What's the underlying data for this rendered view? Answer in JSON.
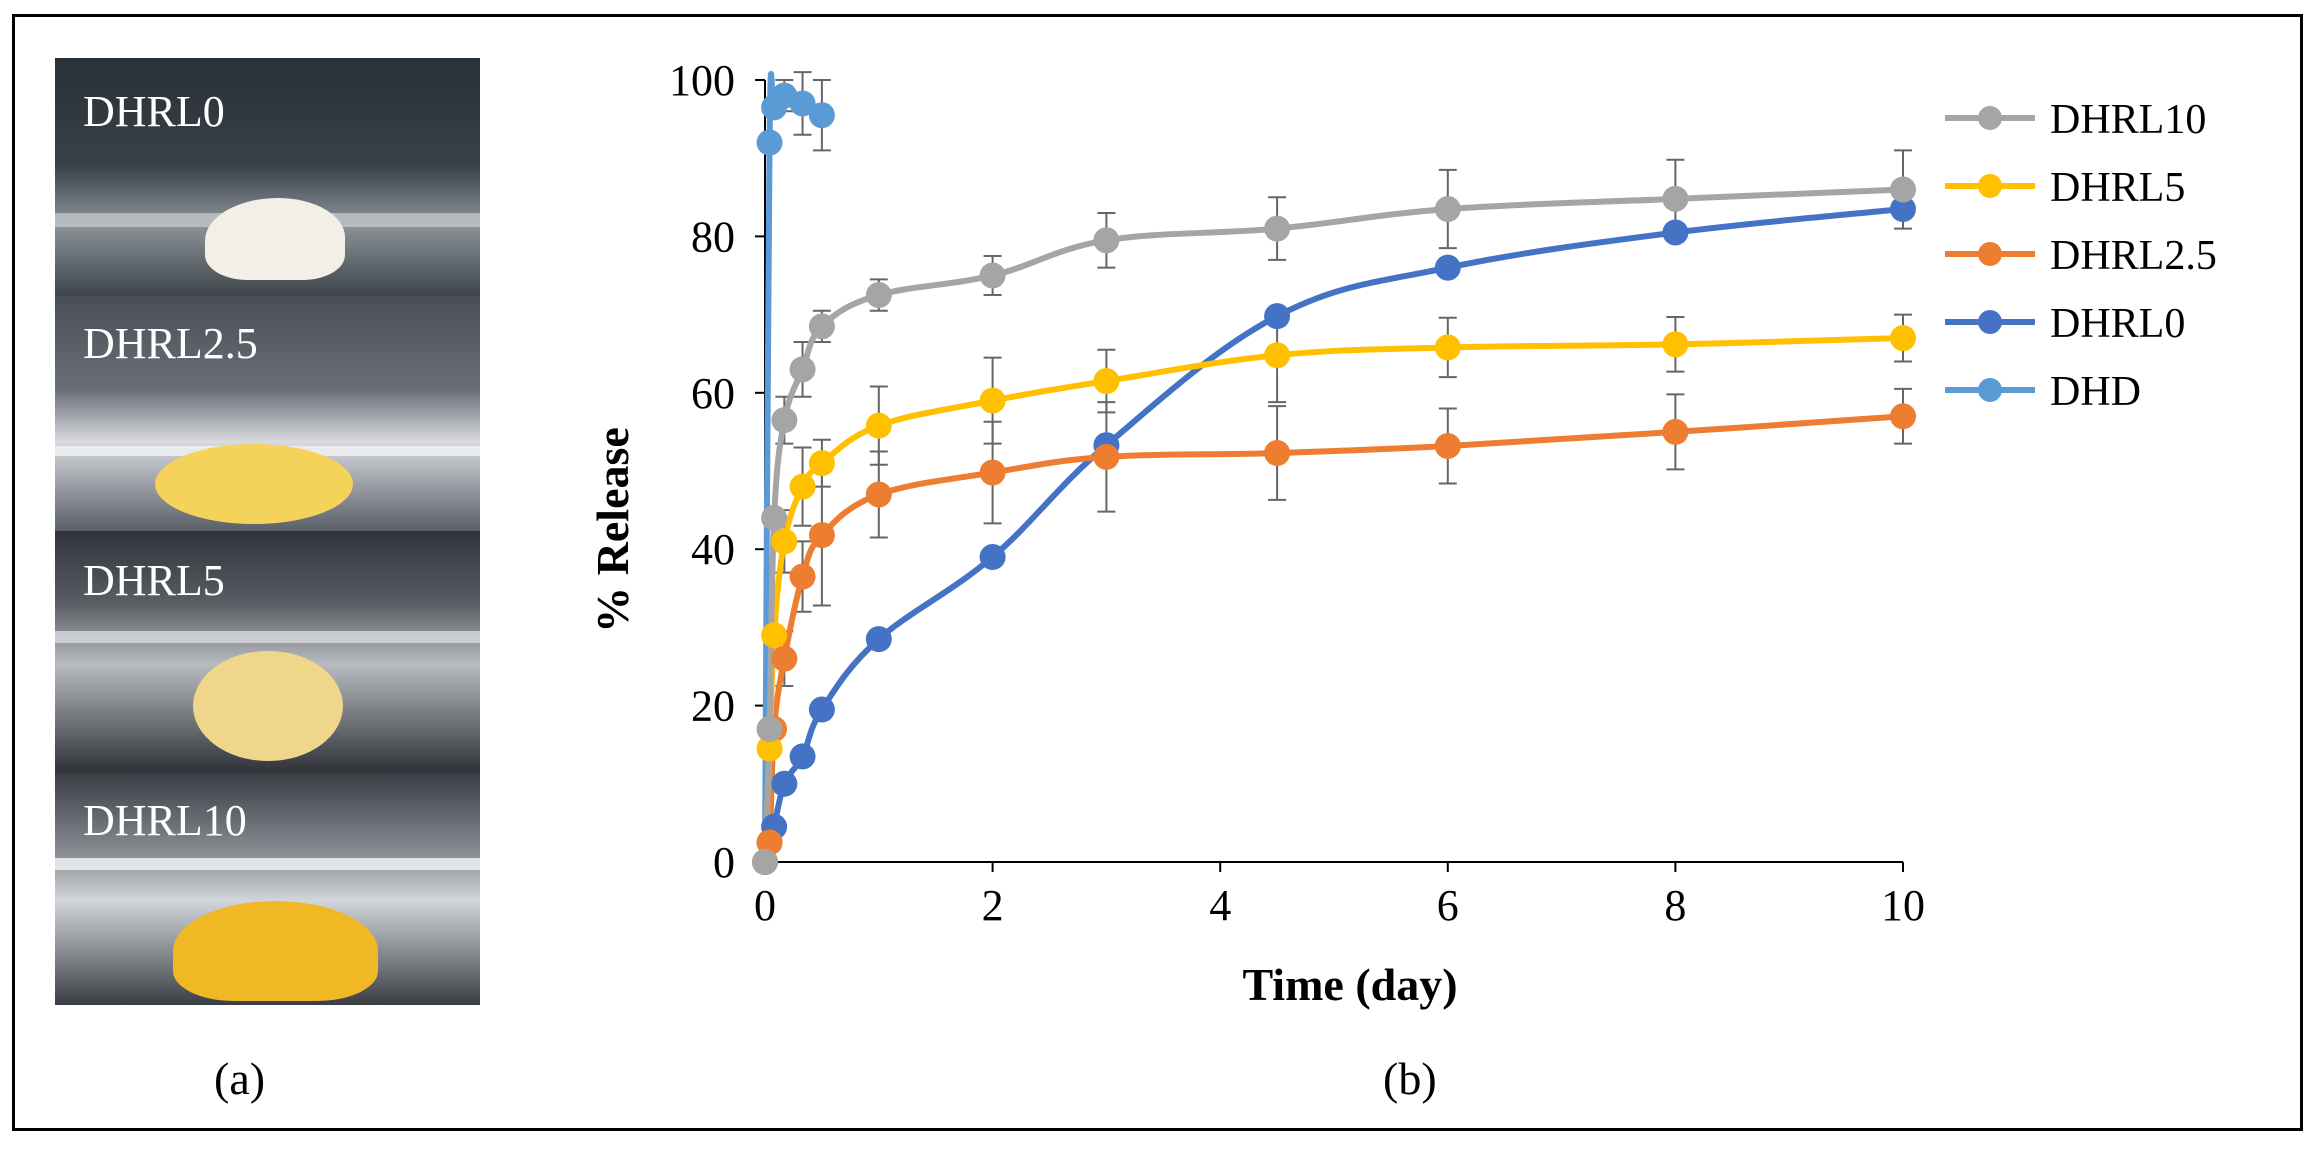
{
  "panel_a": {
    "label": "(a)",
    "photos": [
      {
        "label": "DHRL0"
      },
      {
        "label": "DHRL2.5"
      },
      {
        "label": "DHRL5"
      },
      {
        "label": "DHRL10"
      }
    ]
  },
  "panel_b": {
    "label": "(b)"
  },
  "chart_data": {
    "type": "line",
    "title": "",
    "xlabel": "Time (day)",
    "ylabel": "% Release",
    "xlim": [
      0,
      10
    ],
    "ylim": [
      0,
      100
    ],
    "xticks": [
      "0",
      "2",
      "4",
      "6",
      "8",
      "10"
    ],
    "yticks": [
      "0",
      "20",
      "40",
      "60",
      "80",
      "100"
    ],
    "grid": false,
    "legend_position": "top-right",
    "series": [
      {
        "name": "DHRL10",
        "color": "#a5a5a5",
        "x": [
          0,
          0.04,
          0.08,
          0.17,
          0.33,
          0.5,
          1,
          2,
          3,
          4.5,
          6,
          8,
          10
        ],
        "y": [
          0,
          17,
          44,
          56.5,
          63,
          68.5,
          72.5,
          75,
          79.5,
          81,
          83.5,
          84.8,
          86
        ],
        "err": [
          0,
          0,
          0,
          3,
          3.5,
          2,
          2,
          2.5,
          3.5,
          4,
          5,
          5,
          5
        ]
      },
      {
        "name": "DHRL5",
        "color": "#ffc000",
        "x": [
          0,
          0.04,
          0.08,
          0.17,
          0.33,
          0.5,
          1,
          2,
          3,
          4.5,
          6,
          8,
          10
        ],
        "y": [
          0,
          14.5,
          29,
          41,
          48,
          51,
          55.8,
          59,
          61.5,
          64.8,
          65.8,
          66.2,
          67
        ],
        "err": [
          0,
          0,
          0,
          4,
          5,
          3,
          5,
          5.5,
          4,
          6,
          3.8,
          3.5,
          3
        ]
      },
      {
        "name": "DHRL2.5",
        "color": "#ed7d31",
        "x": [
          0,
          0.04,
          0.08,
          0.17,
          0.33,
          0.5,
          1,
          2,
          3,
          4.5,
          6,
          8,
          10
        ],
        "y": [
          0,
          2.5,
          17,
          26,
          36.5,
          41.8,
          47,
          49.8,
          51.8,
          52.3,
          53.2,
          55,
          57
        ],
        "err": [
          0,
          0,
          0,
          3.5,
          4.5,
          9,
          5.5,
          6.5,
          7,
          6,
          4.8,
          4.8,
          3.5
        ]
      },
      {
        "name": "DHRL0",
        "color": "#4472c4",
        "x": [
          0,
          0.04,
          0.08,
          0.17,
          0.33,
          0.5,
          1,
          2,
          3,
          4.5,
          6,
          8,
          10
        ],
        "y": [
          0,
          2.5,
          4.5,
          10,
          13.5,
          19.5,
          28.5,
          39,
          53.3,
          69.8,
          76,
          80.5,
          83.5
        ],
        "err": [
          0,
          0,
          0,
          0,
          0,
          0,
          0,
          0,
          0,
          0,
          0,
          0,
          0
        ]
      },
      {
        "name": "DHD",
        "color": "#5b9bd5",
        "x": [
          0,
          0.04,
          0.08,
          0.17,
          0.33,
          0.5
        ],
        "y": [
          0,
          92,
          96.5,
          98,
          97,
          95.5
        ],
        "err": [
          0,
          0,
          0,
          2,
          4,
          4.5
        ]
      }
    ]
  }
}
